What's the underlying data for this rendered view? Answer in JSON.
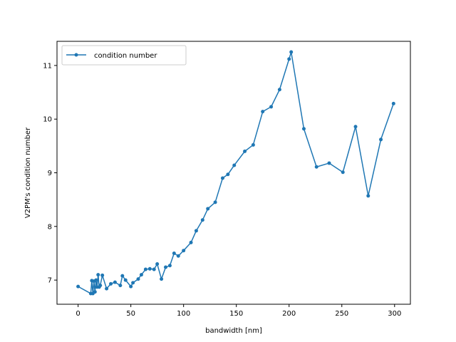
{
  "chart_data": {
    "type": "line",
    "title": "",
    "xlabel": "bandwidth [nm]",
    "ylabel": "V2PM's condition number",
    "xlim": [
      -20,
      315
    ],
    "ylim": [
      6.55,
      11.45
    ],
    "xticks": [
      0,
      50,
      100,
      150,
      200,
      250,
      300
    ],
    "yticks": [
      7,
      8,
      9,
      10,
      11
    ],
    "grid": false,
    "legend_position": "top-left",
    "colors": {
      "series": "#1f77b4",
      "axes": "#000000",
      "background": "#ffffff"
    },
    "series": [
      {
        "name": "condition number",
        "marker": "circle",
        "x": [
          0,
          12,
          13,
          14,
          15,
          16,
          17,
          18,
          19,
          20,
          21,
          23,
          27,
          31,
          35,
          40,
          42,
          45,
          50,
          52,
          57,
          60,
          64,
          68,
          72,
          75,
          79,
          83,
          87,
          91,
          95,
          100,
          107,
          112,
          118,
          123,
          130,
          137,
          142,
          148,
          158,
          166,
          175,
          183,
          191,
          200,
          202,
          214,
          226,
          238,
          251,
          263,
          275,
          287,
          299
        ],
        "y": [
          6.88,
          6.75,
          6.99,
          6.75,
          6.98,
          6.78,
          7.0,
          6.87,
          7.1,
          6.87,
          6.9,
          7.09,
          6.84,
          6.93,
          6.96,
          6.9,
          7.08,
          7.0,
          6.88,
          6.95,
          7.02,
          7.1,
          7.2,
          7.21,
          7.2,
          7.3,
          7.02,
          7.24,
          7.27,
          7.5,
          7.45,
          7.55,
          7.7,
          7.92,
          8.12,
          8.33,
          8.45,
          8.9,
          8.97,
          9.14,
          9.4,
          9.52,
          10.14,
          10.23,
          10.55,
          11.12,
          11.25,
          9.82,
          9.11,
          9.18,
          9.01,
          9.86,
          8.57,
          9.62,
          10.29
        ]
      }
    ]
  }
}
